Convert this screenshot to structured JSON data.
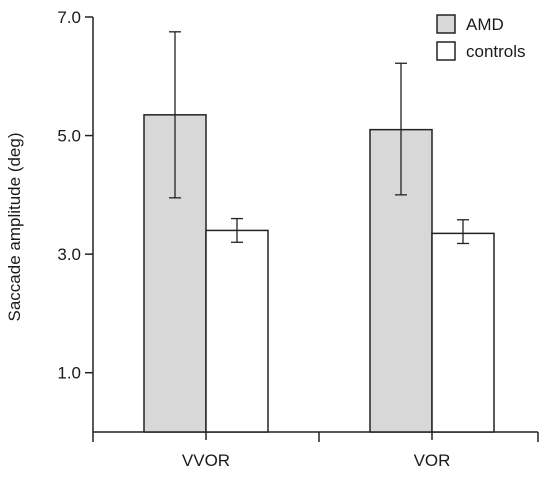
{
  "chart_data": {
    "type": "bar",
    "title": "",
    "xlabel": "",
    "ylabel": "Saccade amplitude (deg)",
    "ylim": [
      0,
      7.0
    ],
    "yticks": [
      1.0,
      3.0,
      5.0,
      7.0
    ],
    "ytick_labels": [
      "1.0",
      "3.0",
      "5.0",
      "7.0"
    ],
    "categories": [
      "VVOR",
      "VOR"
    ],
    "series": [
      {
        "name": "AMD",
        "color": "#d8d8d8",
        "values": [
          5.35,
          5.1
        ],
        "error_low": [
          3.95,
          4.0
        ],
        "error_high": [
          6.75,
          6.22
        ]
      },
      {
        "name": "controls",
        "color": "#ffffff",
        "values": [
          3.4,
          3.35
        ],
        "error_low": [
          3.2,
          3.18
        ],
        "error_high": [
          3.6,
          3.58
        ]
      }
    ],
    "legend_position": "top-right",
    "grid": false
  }
}
